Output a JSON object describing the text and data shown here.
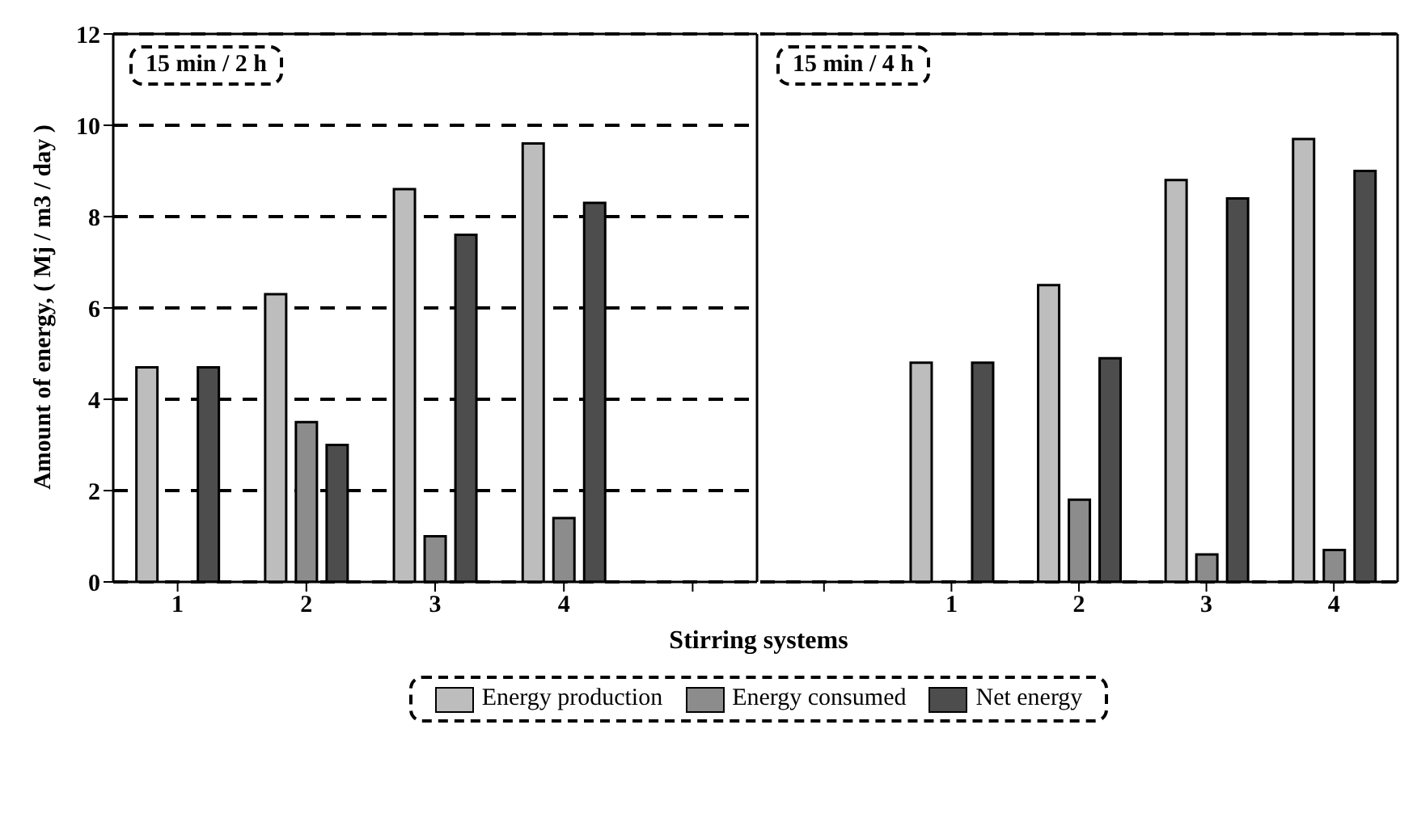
{
  "chart_data": [
    {
      "type": "bar",
      "ylabel": "Amount of energy, ( Mj / m3 / day )",
      "xlabel": "Stirring systems",
      "annotations": [
        "15 min / 2 h"
      ],
      "categories": [
        "1",
        "2",
        "3",
        "4",
        null
      ],
      "series": [
        {
          "name": "Energy production",
          "color": "#bdbdbd",
          "values": [
            4.7,
            6.3,
            8.6,
            9.6,
            null
          ]
        },
        {
          "name": "Energy consumed",
          "color": "#8c8c8c",
          "values": [
            null,
            3.5,
            1.0,
            1.4,
            null
          ]
        },
        {
          "name": "Net energy",
          "color": "#4d4d4d",
          "values": [
            4.7,
            3.0,
            7.6,
            8.3,
            null
          ]
        }
      ],
      "ylim": [
        0,
        12
      ],
      "yticks": [
        0,
        2,
        4,
        6,
        8,
        10,
        12
      ],
      "grid": "y",
      "legend": "bottom"
    },
    {
      "type": "bar",
      "annotations": [
        "15 min / 4 h"
      ],
      "categories": [
        null,
        "1",
        "2",
        "3",
        "4"
      ],
      "series": [
        {
          "color": "#bdbdbd",
          "values": [
            null,
            4.8,
            6.5,
            8.8,
            9.7
          ]
        },
        {
          "color": "#8c8c8c",
          "values": [
            null,
            null,
            1.8,
            0.6,
            0.7
          ]
        },
        {
          "color": "#4d4d4d",
          "values": [
            null,
            4.8,
            4.9,
            8.4,
            9.0
          ]
        }
      ],
      "ylim": [
        0,
        12
      ],
      "yticks": [
        0,
        2,
        4,
        6,
        8,
        10,
        12
      ],
      "grid": "y",
      "tick_labels": "x"
    }
  ]
}
